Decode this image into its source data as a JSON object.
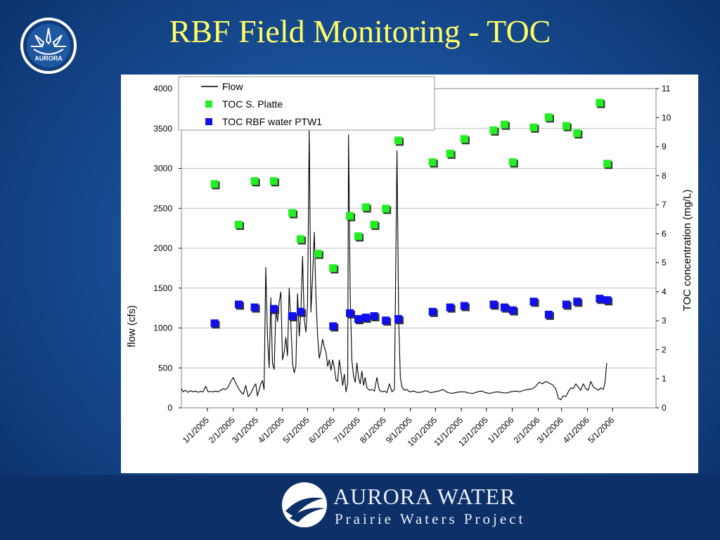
{
  "slide": {
    "title": "RBF Field Monitoring - TOC",
    "footer_brand": "AURORA WATER",
    "footer_sub": "Prairie Waters Project",
    "logo_text": "AURORA"
  },
  "colors": {
    "background": "#174d94",
    "title": "#ffff66",
    "flow": "#000000",
    "toc_platte": "#22ee22",
    "toc_rbf": "#1010ee"
  },
  "chart_data": {
    "type": "line",
    "title": "",
    "ylabel": "flow (cfs)",
    "y2label": "TOC concentration (mg/L)",
    "ylim": [
      0,
      4000
    ],
    "y2lim": [
      0,
      11
    ],
    "yticks": [
      0,
      500,
      1000,
      1500,
      2000,
      2500,
      3000,
      3500,
      4000
    ],
    "y2ticks": [
      0,
      1,
      2,
      3,
      4,
      5,
      6,
      7,
      8,
      9,
      10,
      11
    ],
    "xlim": [
      "2004-12-01",
      "2006-06-22"
    ],
    "xticks": [
      "1/1/2005",
      "2/1/2005",
      "3/1/2005",
      "4/1/2005",
      "5/1/2005",
      "6/1/2005",
      "7/1/2005",
      "8/1/2005",
      "9/1/2005",
      "10/1/2005",
      "11/1/2005",
      "12/1/2005",
      "1/1/2006",
      "2/1/2006",
      "3/1/2006",
      "4/1/2006",
      "5/1/2006"
    ],
    "grid": "horizontal",
    "legend_position": "top-left",
    "series": [
      {
        "name": "Flow",
        "kind": "line",
        "axis": "left",
        "points": [
          [
            "2004-12-01",
            240
          ],
          [
            "2004-12-03",
            200
          ],
          [
            "2004-12-06",
            220
          ],
          [
            "2004-12-09",
            195
          ],
          [
            "2004-12-12",
            215
          ],
          [
            "2004-12-15",
            200
          ],
          [
            "2004-12-18",
            210
          ],
          [
            "2004-12-21",
            195
          ],
          [
            "2004-12-24",
            205
          ],
          [
            "2004-12-27",
            200
          ],
          [
            "2004-12-30",
            270
          ],
          [
            "2005-01-02",
            200
          ],
          [
            "2005-01-05",
            205
          ],
          [
            "2005-01-08",
            200
          ],
          [
            "2005-01-11",
            210
          ],
          [
            "2005-01-14",
            200
          ],
          [
            "2005-01-17",
            220
          ],
          [
            "2005-01-20",
            240
          ],
          [
            "2005-01-23",
            230
          ],
          [
            "2005-01-26",
            260
          ],
          [
            "2005-01-29",
            330
          ],
          [
            "2005-02-01",
            380
          ],
          [
            "2005-02-04",
            310
          ],
          [
            "2005-02-07",
            250
          ],
          [
            "2005-02-10",
            200
          ],
          [
            "2005-02-13",
            170
          ],
          [
            "2005-02-16",
            280
          ],
          [
            "2005-02-19",
            140
          ],
          [
            "2005-02-22",
            180
          ],
          [
            "2005-02-25",
            250
          ],
          [
            "2005-02-28",
            300
          ],
          [
            "2005-03-02",
            150
          ],
          [
            "2005-03-04",
            220
          ],
          [
            "2005-03-06",
            300
          ],
          [
            "2005-03-08",
            340
          ],
          [
            "2005-03-10",
            230
          ],
          [
            "2005-03-12",
            1760
          ],
          [
            "2005-03-14",
            900
          ],
          [
            "2005-03-16",
            500
          ],
          [
            "2005-03-18",
            1380
          ],
          [
            "2005-03-20",
            560
          ],
          [
            "2005-03-22",
            480
          ],
          [
            "2005-03-24",
            1240
          ],
          [
            "2005-03-26",
            1080
          ],
          [
            "2005-03-28",
            1320
          ],
          [
            "2005-03-30",
            1450
          ],
          [
            "2005-04-01",
            600
          ],
          [
            "2005-04-03",
            700
          ],
          [
            "2005-04-05",
            880
          ],
          [
            "2005-04-07",
            650
          ],
          [
            "2005-04-09",
            1500
          ],
          [
            "2005-04-11",
            1050
          ],
          [
            "2005-04-13",
            550
          ],
          [
            "2005-04-15",
            440
          ],
          [
            "2005-04-17",
            520
          ],
          [
            "2005-04-19",
            1430
          ],
          [
            "2005-04-21",
            900
          ],
          [
            "2005-04-23",
            1200
          ],
          [
            "2005-04-25",
            1900
          ],
          [
            "2005-04-27",
            1100
          ],
          [
            "2005-04-29",
            950
          ],
          [
            "2005-05-01",
            1300
          ],
          [
            "2005-05-03",
            3480
          ],
          [
            "2005-05-05",
            1200
          ],
          [
            "2005-05-07",
            1650
          ],
          [
            "2005-05-09",
            2200
          ],
          [
            "2005-05-11",
            1400
          ],
          [
            "2005-05-13",
            900
          ],
          [
            "2005-05-15",
            620
          ],
          [
            "2005-05-17",
            720
          ],
          [
            "2005-05-19",
            860
          ],
          [
            "2005-05-21",
            760
          ],
          [
            "2005-05-23",
            700
          ],
          [
            "2005-05-25",
            520
          ],
          [
            "2005-05-27",
            600
          ],
          [
            "2005-05-29",
            470
          ],
          [
            "2005-05-31",
            600
          ],
          [
            "2005-06-02",
            500
          ],
          [
            "2005-06-04",
            350
          ],
          [
            "2005-06-06",
            330
          ],
          [
            "2005-06-08",
            600
          ],
          [
            "2005-06-10",
            440
          ],
          [
            "2005-06-12",
            280
          ],
          [
            "2005-06-14",
            420
          ],
          [
            "2005-06-16",
            200
          ],
          [
            "2005-06-18",
            310
          ],
          [
            "2005-06-19",
            3420
          ],
          [
            "2005-06-21",
            1400
          ],
          [
            "2005-06-23",
            600
          ],
          [
            "2005-06-25",
            400
          ],
          [
            "2005-06-27",
            320
          ],
          [
            "2005-06-29",
            560
          ],
          [
            "2005-07-01",
            380
          ],
          [
            "2005-07-03",
            300
          ],
          [
            "2005-07-05",
            460
          ],
          [
            "2005-07-07",
            280
          ],
          [
            "2005-07-09",
            380
          ],
          [
            "2005-07-11",
            250
          ],
          [
            "2005-07-14",
            220
          ],
          [
            "2005-07-17",
            230
          ],
          [
            "2005-07-20",
            210
          ],
          [
            "2005-07-23",
            380
          ],
          [
            "2005-07-26",
            220
          ],
          [
            "2005-07-29",
            200
          ],
          [
            "2005-08-01",
            210
          ],
          [
            "2005-08-04",
            190
          ],
          [
            "2005-08-07",
            300
          ],
          [
            "2005-08-10",
            200
          ],
          [
            "2005-08-13",
            230
          ],
          [
            "2005-08-16",
            3220
          ],
          [
            "2005-08-18",
            1100
          ],
          [
            "2005-08-20",
            380
          ],
          [
            "2005-08-22",
            260
          ],
          [
            "2005-08-25",
            220
          ],
          [
            "2005-08-28",
            230
          ],
          [
            "2005-08-31",
            200
          ],
          [
            "2005-09-05",
            210
          ],
          [
            "2005-09-10",
            190
          ],
          [
            "2005-09-15",
            200
          ],
          [
            "2005-09-20",
            215
          ],
          [
            "2005-09-25",
            190
          ],
          [
            "2005-09-30",
            200
          ],
          [
            "2005-10-05",
            210
          ],
          [
            "2005-10-10",
            230
          ],
          [
            "2005-10-15",
            195
          ],
          [
            "2005-10-20",
            180
          ],
          [
            "2005-10-25",
            190
          ],
          [
            "2005-10-30",
            200
          ],
          [
            "2005-11-05",
            200
          ],
          [
            "2005-11-10",
            185
          ],
          [
            "2005-11-15",
            180
          ],
          [
            "2005-11-20",
            200
          ],
          [
            "2005-11-25",
            210
          ],
          [
            "2005-11-30",
            190
          ],
          [
            "2005-12-05",
            180
          ],
          [
            "2005-12-10",
            195
          ],
          [
            "2005-12-15",
            200
          ],
          [
            "2005-12-20",
            190
          ],
          [
            "2005-12-25",
            185
          ],
          [
            "2005-12-30",
            200
          ],
          [
            "2006-01-05",
            210
          ],
          [
            "2006-01-10",
            200
          ],
          [
            "2006-01-15",
            220
          ],
          [
            "2006-01-20",
            230
          ],
          [
            "2006-01-25",
            240
          ],
          [
            "2006-01-29",
            270
          ],
          [
            "2006-02-02",
            320
          ],
          [
            "2006-02-06",
            300
          ],
          [
            "2006-02-10",
            330
          ],
          [
            "2006-02-14",
            310
          ],
          [
            "2006-02-18",
            290
          ],
          [
            "2006-02-22",
            240
          ],
          [
            "2006-02-25",
            120
          ],
          [
            "2006-02-28",
            100
          ],
          [
            "2006-03-03",
            150
          ],
          [
            "2006-03-06",
            140
          ],
          [
            "2006-03-09",
            200
          ],
          [
            "2006-03-12",
            250
          ],
          [
            "2006-03-15",
            240
          ],
          [
            "2006-03-18",
            300
          ],
          [
            "2006-03-21",
            260
          ],
          [
            "2006-03-24",
            220
          ],
          [
            "2006-03-27",
            300
          ],
          [
            "2006-03-30",
            240
          ],
          [
            "2006-04-02",
            220
          ],
          [
            "2006-04-05",
            330
          ],
          [
            "2006-04-08",
            260
          ],
          [
            "2006-04-11",
            240
          ],
          [
            "2006-04-14",
            220
          ],
          [
            "2006-04-17",
            250
          ],
          [
            "2006-04-20",
            230
          ],
          [
            "2006-04-22",
            320
          ],
          [
            "2006-04-24",
            560
          ]
        ]
      },
      {
        "name": "TOC S. Platte",
        "kind": "marker",
        "axis": "right",
        "color": "#22ee22",
        "points": [
          [
            "2005-01-10",
            7.7
          ],
          [
            "2005-02-08",
            6.3
          ],
          [
            "2005-02-27",
            7.8
          ],
          [
            "2005-03-22",
            7.8
          ],
          [
            "2005-04-13",
            6.7
          ],
          [
            "2005-04-23",
            5.8
          ],
          [
            "2005-05-14",
            5.3
          ],
          [
            "2005-06-01",
            4.8
          ],
          [
            "2005-06-21",
            6.6
          ],
          [
            "2005-07-01",
            5.9
          ],
          [
            "2005-07-10",
            6.9
          ],
          [
            "2005-07-20",
            6.3
          ],
          [
            "2005-08-03",
            6.85
          ],
          [
            "2005-08-18",
            9.2
          ],
          [
            "2005-09-28",
            8.45
          ],
          [
            "2005-10-19",
            8.75
          ],
          [
            "2005-11-05",
            9.25
          ],
          [
            "2005-12-10",
            9.55
          ],
          [
            "2005-12-23",
            9.75
          ],
          [
            "2006-01-02",
            8.45
          ],
          [
            "2006-01-27",
            9.65
          ],
          [
            "2006-02-14",
            10.0
          ],
          [
            "2006-03-07",
            9.7
          ],
          [
            "2006-03-20",
            9.45
          ],
          [
            "2006-04-16",
            10.5
          ],
          [
            "2006-04-25",
            8.4
          ]
        ]
      },
      {
        "name": "TOC RBF water PTW1",
        "kind": "marker",
        "axis": "right",
        "color": "#1010ee",
        "points": [
          [
            "2005-01-10",
            2.9
          ],
          [
            "2005-02-08",
            3.55
          ],
          [
            "2005-02-27",
            3.45
          ],
          [
            "2005-03-22",
            3.4
          ],
          [
            "2005-04-13",
            3.15
          ],
          [
            "2005-04-23",
            3.3
          ],
          [
            "2005-06-01",
            2.8
          ],
          [
            "2005-06-21",
            3.25
          ],
          [
            "2005-07-01",
            3.05
          ],
          [
            "2005-07-10",
            3.1
          ],
          [
            "2005-07-20",
            3.15
          ],
          [
            "2005-08-03",
            3.0
          ],
          [
            "2005-08-18",
            3.05
          ],
          [
            "2005-09-28",
            3.3
          ],
          [
            "2005-10-19",
            3.45
          ],
          [
            "2005-11-05",
            3.5
          ],
          [
            "2005-12-10",
            3.55
          ],
          [
            "2005-12-23",
            3.45
          ],
          [
            "2006-01-02",
            3.35
          ],
          [
            "2006-01-27",
            3.65
          ],
          [
            "2006-02-14",
            3.2
          ],
          [
            "2006-03-07",
            3.55
          ],
          [
            "2006-03-20",
            3.65
          ],
          [
            "2006-04-16",
            3.75
          ],
          [
            "2006-04-25",
            3.7
          ]
        ]
      }
    ]
  }
}
